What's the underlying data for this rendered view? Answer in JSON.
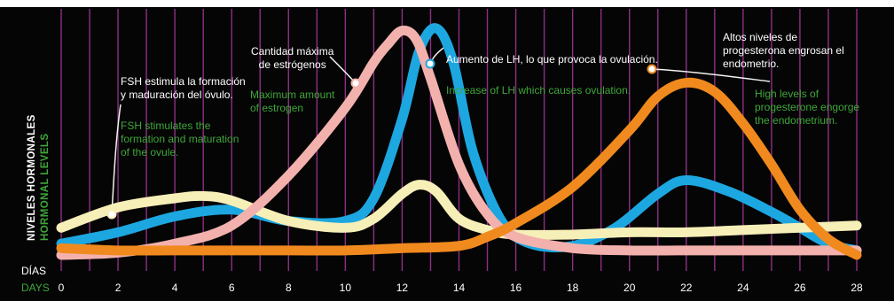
{
  "chart_data": {
    "type": "line",
    "xlabel_es": "DÍAS",
    "xlabel_en": "DAYS",
    "ylabel_es": "NIVELES HORMONALES",
    "ylabel_en": "HORMONAL LEVELS",
    "xlim": [
      0,
      28
    ],
    "ylim": [
      0,
      100
    ],
    "x_ticks": [
      0,
      2,
      4,
      6,
      8,
      10,
      12,
      14,
      16,
      18,
      20,
      22,
      24,
      26,
      28
    ],
    "vertical_grid_days": [
      0,
      1,
      2,
      3,
      4,
      5,
      6,
      7,
      8,
      9,
      10,
      11,
      12,
      13,
      14,
      15,
      16,
      17,
      18,
      19,
      20,
      21,
      22,
      23,
      24,
      25,
      26,
      27,
      28
    ],
    "series": [
      {
        "key": "lh",
        "color": "#1da7e0",
        "points": [
          [
            0,
            5
          ],
          [
            2,
            10
          ],
          [
            4,
            17
          ],
          [
            6,
            20
          ],
          [
            8,
            15
          ],
          [
            10,
            15
          ],
          [
            11,
            25
          ],
          [
            12,
            60
          ],
          [
            12.6,
            90
          ],
          [
            13.2,
            100
          ],
          [
            13.8,
            85
          ],
          [
            14.5,
            45
          ],
          [
            15.5,
            15
          ],
          [
            16.5,
            5
          ],
          [
            18,
            4
          ],
          [
            19.5,
            12
          ],
          [
            21,
            27
          ],
          [
            22,
            33
          ],
          [
            23.5,
            28
          ],
          [
            25,
            19
          ],
          [
            26,
            12
          ],
          [
            27,
            5
          ],
          [
            28,
            2
          ]
        ]
      },
      {
        "key": "fsh",
        "color": "#f7efb8",
        "points": [
          [
            0,
            12
          ],
          [
            2,
            21
          ],
          [
            4,
            25
          ],
          [
            5,
            26
          ],
          [
            6,
            24
          ],
          [
            8,
            15
          ],
          [
            10,
            12
          ],
          [
            11,
            16
          ],
          [
            12,
            27
          ],
          [
            12.6,
            31
          ],
          [
            13.2,
            28
          ],
          [
            14,
            16
          ],
          [
            15,
            11
          ],
          [
            16,
            9
          ],
          [
            18,
            9
          ],
          [
            20,
            10
          ],
          [
            22,
            10
          ],
          [
            24,
            11
          ],
          [
            26,
            12
          ],
          [
            28,
            13
          ]
        ]
      },
      {
        "key": "estrogen",
        "color": "#f3b1ad",
        "points": [
          [
            0,
            0
          ],
          [
            2,
            1
          ],
          [
            4,
            5
          ],
          [
            6,
            13
          ],
          [
            8,
            35
          ],
          [
            10,
            65
          ],
          [
            11,
            85
          ],
          [
            11.5,
            93
          ],
          [
            12,
            99
          ],
          [
            12.5,
            95
          ],
          [
            13,
            78
          ],
          [
            14,
            40
          ],
          [
            15,
            18
          ],
          [
            16,
            8
          ],
          [
            18,
            3
          ],
          [
            20,
            2
          ],
          [
            22,
            2
          ],
          [
            24,
            2
          ],
          [
            26,
            2
          ],
          [
            28,
            2
          ]
        ]
      },
      {
        "key": "progesterone",
        "color": "#f08a1e",
        "points": [
          [
            0,
            3
          ],
          [
            2,
            2
          ],
          [
            4,
            2
          ],
          [
            6,
            2
          ],
          [
            8,
            2
          ],
          [
            10,
            2
          ],
          [
            12,
            3
          ],
          [
            14,
            4
          ],
          [
            15,
            8
          ],
          [
            16,
            14
          ],
          [
            18,
            30
          ],
          [
            20,
            55
          ],
          [
            21,
            70
          ],
          [
            22,
            76
          ],
          [
            23,
            72
          ],
          [
            24,
            58
          ],
          [
            25,
            40
          ],
          [
            26,
            20
          ],
          [
            27,
            7
          ],
          [
            28,
            0
          ]
        ]
      }
    ],
    "annotations": [
      {
        "key": "fsh",
        "es": "FSH estimula la formación\ny maduración del óvulo.",
        "en": "FSH stimulates the\nformation and maturation\nof the ovule."
      },
      {
        "key": "estrogen",
        "es": "Cantidad máxima\nde estrógenos",
        "en": "Maximum amount\nof estrogen"
      },
      {
        "key": "lh",
        "es": "Aumento de LH, lo que provoca la ovulación.",
        "en": "Increase of LH which causes ovulation."
      },
      {
        "key": "progesterone",
        "es": "Altos niveles de\nprogesterona engrosan el\nendometrio.",
        "en": "High levels of\nprogesterone engorge\nthe endometrium."
      }
    ]
  }
}
